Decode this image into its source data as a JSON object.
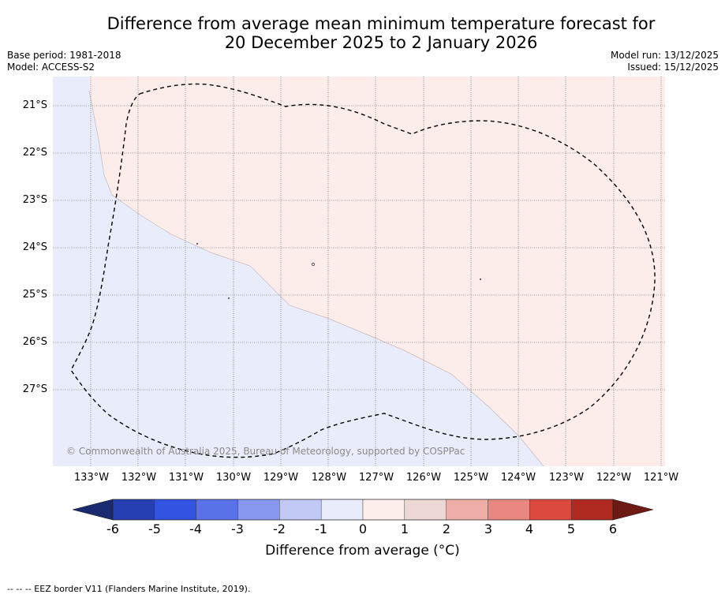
{
  "title_line1": "Difference from average mean minimum temperature forecast for",
  "title_line2": "20 December 2025 to 2 January 2026",
  "base_period": "Base period: 1981-2018",
  "model": "Model: ACCESS-S2",
  "model_run": "Model run: 13/12/2025",
  "issued": "Issued: 15/12/2025",
  "lat_labels": [
    "21°S",
    "22°S",
    "23°S",
    "24°S",
    "25°S",
    "26°S",
    "27°S"
  ],
  "lon_labels": [
    "133°W",
    "132°W",
    "131°W",
    "130°W",
    "129°W",
    "128°W",
    "127°W",
    "126°W",
    "125°W",
    "124°W",
    "123°W",
    "122°W",
    "121°W"
  ],
  "colorbar": {
    "ticks": [
      "-6",
      "-5",
      "-4",
      "-3",
      "-2",
      "-1",
      "0",
      "1",
      "2",
      "3",
      "4",
      "5",
      "6"
    ],
    "colors": [
      "#2640b2",
      "#3252e0",
      "#5a72e8",
      "#8898ee",
      "#c2c8f4",
      "#e9ecfb",
      "#fdeeec",
      "#ecd7d5",
      "#eeaea7",
      "#e88880",
      "#dc4a3f",
      "#b02a22"
    ],
    "low_extend_color": "#1a2a70",
    "high_extend_color": "#6e1a14",
    "label": "Difference from average ($^\\circ$C)",
    "label_display": "Difference from average (°C)"
  },
  "region_colors": {
    "below": "#e9ecfb",
    "above": "#fcecea"
  },
  "copyright": "© Commonwealth of Australia 2025, Bureau of Meteorology, supported by COSPPac",
  "footnote": "-- -- -- EEZ border V11 (Flanders Marine Institute, 2019).",
  "icons": {
    "marker": "island-dot"
  }
}
